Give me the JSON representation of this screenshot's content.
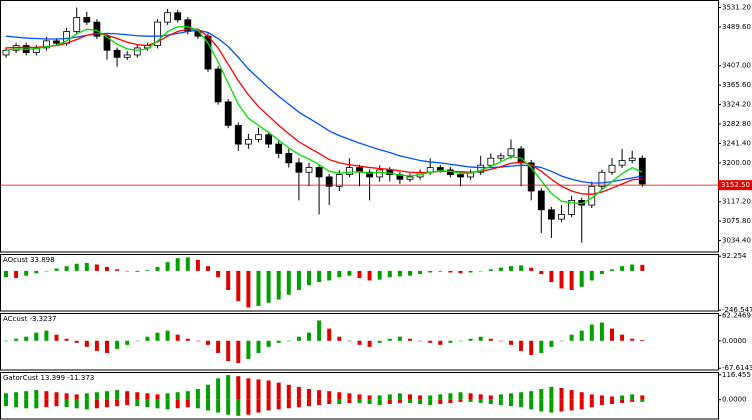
{
  "chart_data": [
    {
      "type": "candlestick",
      "ylim": [
        3010,
        3545
      ],
      "yticks": [
        {
          "value": 3531.2,
          "label": "3531.20"
        },
        {
          "value": 3489.6,
          "label": "3489.60"
        },
        {
          "value": 3407,
          "label": "3407.00"
        },
        {
          "value": 3365.6,
          "label": "3365.60"
        },
        {
          "value": 3324.2,
          "label": "3324.20"
        },
        {
          "value": 3282.8,
          "label": "3282.80"
        },
        {
          "value": 3241.4,
          "label": "3241.40"
        },
        {
          "value": 3200,
          "label": "3200.00"
        },
        {
          "value": 3117.2,
          "label": "3117.20"
        },
        {
          "value": 3075.8,
          "label": "3075.80"
        },
        {
          "value": 3034.4,
          "label": "3034.40"
        }
      ],
      "current_price": {
        "value": 3152.5,
        "label": "3152.50",
        "color": "#e00000"
      },
      "ohlc": [
        [
          3430,
          3446,
          3424,
          3440
        ],
        [
          3440,
          3456,
          3434,
          3450
        ],
        [
          3450,
          3456,
          3429,
          3435
        ],
        [
          3435,
          3451,
          3429,
          3445
        ],
        [
          3445,
          3468,
          3439,
          3460
        ],
        [
          3460,
          3466,
          3449,
          3455
        ],
        [
          3455,
          3488,
          3449,
          3480
        ],
        [
          3480,
          3531,
          3474,
          3510
        ],
        [
          3510,
          3522,
          3494,
          3500
        ],
        [
          3500,
          3506,
          3464,
          3470
        ],
        [
          3470,
          3476,
          3420,
          3440
        ],
        [
          3440,
          3446,
          3405,
          3425
        ],
        [
          3425,
          3438,
          3419,
          3430
        ],
        [
          3430,
          3451,
          3424,
          3445
        ],
        [
          3445,
          3456,
          3439,
          3450
        ],
        [
          3450,
          3506,
          3444,
          3500
        ],
        [
          3500,
          3528,
          3494,
          3520
        ],
        [
          3520,
          3526,
          3499,
          3505
        ],
        [
          3505,
          3511,
          3474,
          3480
        ],
        [
          3480,
          3486,
          3464,
          3470
        ],
        [
          3470,
          3476,
          3394,
          3400
        ],
        [
          3400,
          3406,
          3324,
          3330
        ],
        [
          3330,
          3336,
          3274,
          3280
        ],
        [
          3280,
          3286,
          3225,
          3240
        ],
        [
          3240,
          3262,
          3230,
          3250
        ],
        [
          3250,
          3275,
          3244,
          3260
        ],
        [
          3260,
          3266,
          3232,
          3240
        ],
        [
          3240,
          3250,
          3210,
          3220
        ],
        [
          3220,
          3230,
          3190,
          3200
        ],
        [
          3200,
          3210,
          3120,
          3180
        ],
        [
          3180,
          3200,
          3150,
          3190
        ],
        [
          3190,
          3196,
          3090,
          3170
        ],
        [
          3170,
          3176,
          3110,
          3150
        ],
        [
          3150,
          3185,
          3140,
          3175
        ],
        [
          3175,
          3210,
          3169,
          3190
        ],
        [
          3190,
          3196,
          3150,
          3180
        ],
        [
          3180,
          3186,
          3120,
          3170
        ],
        [
          3170,
          3195,
          3160,
          3185
        ],
        [
          3185,
          3191,
          3160,
          3175
        ],
        [
          3175,
          3181,
          3155,
          3165
        ],
        [
          3165,
          3178,
          3159,
          3170
        ],
        [
          3170,
          3186,
          3164,
          3180
        ],
        [
          3180,
          3210,
          3174,
          3190
        ],
        [
          3190,
          3196,
          3179,
          3185
        ],
        [
          3185,
          3191,
          3169,
          3175
        ],
        [
          3175,
          3181,
          3150,
          3170
        ],
        [
          3170,
          3186,
          3164,
          3180
        ],
        [
          3180,
          3215,
          3174,
          3195
        ],
        [
          3195,
          3220,
          3189,
          3210
        ],
        [
          3210,
          3221,
          3204,
          3215
        ],
        [
          3215,
          3250,
          3209,
          3230
        ],
        [
          3230,
          3236,
          3150,
          3200
        ],
        [
          3200,
          3206,
          3120,
          3140
        ],
        [
          3140,
          3146,
          3050,
          3100
        ],
        [
          3100,
          3106,
          3040,
          3080
        ],
        [
          3080,
          3110,
          3074,
          3090
        ],
        [
          3090,
          3130,
          3084,
          3120
        ],
        [
          3120,
          3126,
          3030,
          3110
        ],
        [
          3110,
          3160,
          3104,
          3150
        ],
        [
          3150,
          3186,
          3144,
          3180
        ],
        [
          3180,
          3210,
          3174,
          3195
        ],
        [
          3195,
          3230,
          3189,
          3205
        ],
        [
          3205,
          3226,
          3199,
          3210
        ],
        [
          3210,
          3216,
          3149,
          3155
        ]
      ],
      "lines": [
        {
          "color": "#0050ff",
          "values": [
            3470,
            3468,
            3466,
            3465,
            3464,
            3464,
            3465,
            3468,
            3472,
            3475,
            3476,
            3475,
            3473,
            3471,
            3470,
            3470,
            3472,
            3476,
            3480,
            3483,
            3478,
            3465,
            3448,
            3425,
            3400,
            3380,
            3360,
            3342,
            3325,
            3308,
            3295,
            3282,
            3268,
            3258,
            3250,
            3242,
            3235,
            3228,
            3222,
            3215,
            3210,
            3205,
            3202,
            3200,
            3197,
            3194,
            3191,
            3190,
            3190,
            3191,
            3193,
            3195,
            3194,
            3190,
            3182,
            3172,
            3165,
            3160,
            3157,
            3157,
            3160,
            3164,
            3168,
            3172
          ]
        },
        {
          "color": "#ff0000",
          "values": [
            3445,
            3446,
            3446,
            3446,
            3448,
            3450,
            3455,
            3463,
            3472,
            3476,
            3472,
            3465,
            3457,
            3452,
            3450,
            3458,
            3470,
            3480,
            3485,
            3485,
            3470,
            3445,
            3410,
            3375,
            3345,
            3320,
            3300,
            3280,
            3262,
            3245,
            3232,
            3220,
            3207,
            3200,
            3196,
            3193,
            3190,
            3188,
            3186,
            3183,
            3180,
            3179,
            3180,
            3182,
            3182,
            3181,
            3180,
            3182,
            3186,
            3192,
            3199,
            3202,
            3196,
            3182,
            3165,
            3150,
            3140,
            3134,
            3133,
            3138,
            3146,
            3155,
            3164,
            3166
          ]
        },
        {
          "color": "#00e000",
          "values": [
            3440,
            3443,
            3442,
            3443,
            3448,
            3451,
            3460,
            3475,
            3485,
            3482,
            3468,
            3453,
            3443,
            3440,
            3443,
            3460,
            3480,
            3490,
            3490,
            3483,
            3455,
            3415,
            3370,
            3325,
            3295,
            3280,
            3265,
            3248,
            3232,
            3218,
            3208,
            3196,
            3182,
            3178,
            3180,
            3181,
            3178,
            3180,
            3178,
            3174,
            3172,
            3175,
            3180,
            3183,
            3182,
            3178,
            3178,
            3184,
            3193,
            3202,
            3213,
            3210,
            3190,
            3162,
            3135,
            3118,
            3115,
            3113,
            3125,
            3143,
            3160,
            3177,
            3190,
            3180
          ]
        }
      ]
    },
    {
      "type": "histogram",
      "title": "AOcust 33.898",
      "up_color": "#00a000",
      "down_color": "#e00000",
      "ylim": [
        -252,
        100
      ],
      "yticks": [
        92.254,
        -246.547
      ],
      "series": [
        {
          "values": [
            -40,
            -45,
            -30,
            -15,
            0,
            15,
            30,
            45,
            50,
            40,
            25,
            10,
            0,
            -5,
            5,
            25,
            55,
            80,
            85,
            70,
            30,
            -40,
            -120,
            -190,
            -230,
            -220,
            -200,
            -180,
            -150,
            -120,
            -90,
            -70,
            -60,
            -40,
            -30,
            -45,
            -60,
            -55,
            -40,
            -35,
            -30,
            -20,
            -10,
            -5,
            -10,
            -15,
            -10,
            0,
            10,
            20,
            30,
            35,
            20,
            -20,
            -70,
            -110,
            -120,
            -100,
            -60,
            -20,
            10,
            30,
            40,
            38
          ]
        }
      ]
    },
    {
      "type": "histogram",
      "title": "ACcust -3.3237",
      "up_color": "#00a000",
      "down_color": "#e00000",
      "ylim": [
        -72,
        66
      ],
      "yticks": [
        62.2469,
        {
          "value": 0,
          "label": "0.0000"
        },
        -67.6143
      ],
      "series": [
        {
          "values": [
            0,
            5,
            10,
            20,
            25,
            15,
            5,
            -5,
            -15,
            -25,
            -30,
            -20,
            -10,
            0,
            10,
            20,
            25,
            15,
            5,
            0,
            -10,
            -30,
            -50,
            -55,
            -45,
            -30,
            -15,
            -5,
            0,
            10,
            20,
            50,
            30,
            10,
            0,
            -10,
            -15,
            -5,
            5,
            10,
            5,
            0,
            -5,
            -10,
            -5,
            0,
            5,
            10,
            5,
            0,
            -10,
            -25,
            -35,
            -30,
            -15,
            0,
            15,
            25,
            40,
            45,
            30,
            15,
            5,
            2
          ]
        }
      ]
    },
    {
      "type": "gator",
      "title": "GatorCust 13.399 -11.373",
      "up_color": "#00a000",
      "down_color": "#e00000",
      "ylim": [
        -90,
        125
      ],
      "yticks": [
        116.455,
        {
          "value": 0,
          "label": "0.0000"
        }
      ],
      "series": [
        {
          "values": [
            30,
            35,
            40,
            45,
            40,
            35,
            30,
            25,
            30,
            35,
            40,
            45,
            40,
            35,
            30,
            25,
            30,
            35,
            40,
            50,
            70,
            100,
            115,
            110,
            100,
            95,
            90,
            80,
            70,
            60,
            50,
            45,
            40,
            35,
            30,
            25,
            20,
            20,
            25,
            30,
            25,
            20,
            20,
            25,
            30,
            35,
            30,
            25,
            20,
            25,
            30,
            35,
            40,
            50,
            60,
            55,
            45,
            35,
            25,
            20,
            15,
            20,
            25,
            20
          ]
        },
        {
          "values": [
            -30,
            -35,
            -40,
            -40,
            -35,
            -30,
            -35,
            -40,
            -45,
            -40,
            -35,
            -30,
            -25,
            -30,
            -35,
            -40,
            -45,
            -40,
            -35,
            -40,
            -50,
            -60,
            -70,
            -75,
            -70,
            -60,
            -50,
            -45,
            -40,
            -35,
            -30,
            -25,
            -20,
            -20,
            -15,
            -15,
            -20,
            -25,
            -20,
            -15,
            -15,
            -20,
            -25,
            -20,
            -15,
            -10,
            -10,
            -15,
            -20,
            -25,
            -30,
            -35,
            -45,
            -55,
            -60,
            -55,
            -50,
            -45,
            -35,
            -25,
            -20,
            -15,
            -10,
            -10
          ]
        }
      ]
    }
  ]
}
